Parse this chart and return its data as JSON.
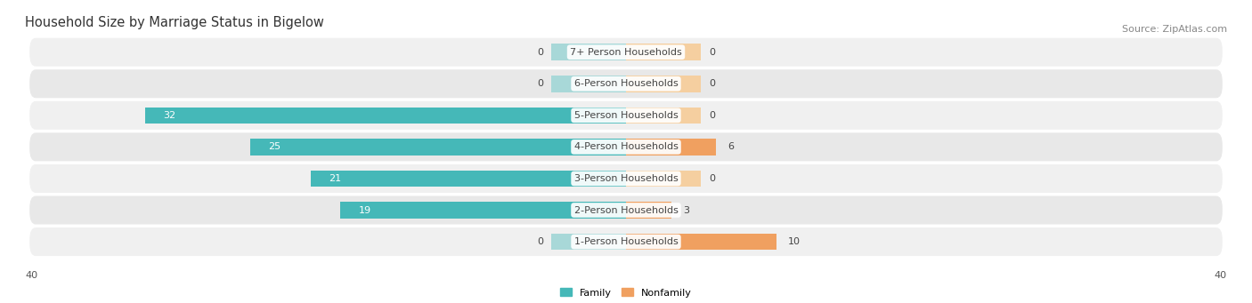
{
  "title": "Household Size by Marriage Status in Bigelow",
  "source": "Source: ZipAtlas.com",
  "categories": [
    "7+ Person Households",
    "6-Person Households",
    "5-Person Households",
    "4-Person Households",
    "3-Person Households",
    "2-Person Households",
    "1-Person Households"
  ],
  "family_values": [
    0,
    0,
    32,
    25,
    21,
    19,
    0
  ],
  "nonfamily_values": [
    0,
    0,
    0,
    6,
    0,
    3,
    10
  ],
  "family_color": "#45b8b8",
  "nonfamily_color": "#f0a060",
  "family_color_light": "#a8d8d8",
  "nonfamily_color_light": "#f5cfa0",
  "bar_height": 0.52,
  "xlim_left": -40,
  "xlim_right": 40,
  "min_bar_width": 5,
  "title_fontsize": 10.5,
  "source_fontsize": 8,
  "label_fontsize": 8,
  "value_fontsize": 8,
  "row_colors": [
    "#f0f0f0",
    "#e8e8e8"
  ],
  "row_border_color": "#d8d8d8"
}
